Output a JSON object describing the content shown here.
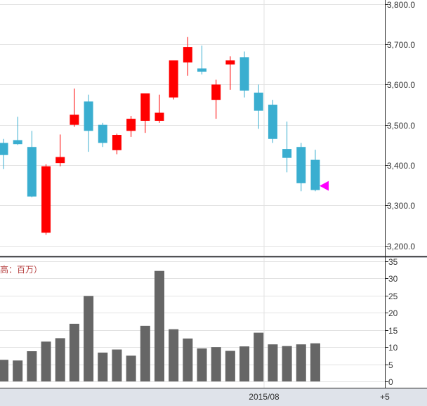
{
  "chart_data": [
    {
      "type": "candlestick",
      "ylim": [
        3175,
        3810
      ],
      "yticks": [
        "3,200.0",
        "3,300.0",
        "3,400.0",
        "3,500.0",
        "3,600.0",
        "3,700.0",
        "3,800.0"
      ],
      "ytick_values": [
        3200,
        3300,
        3400,
        3500,
        3600,
        3700,
        3800
      ],
      "colors": {
        "up": "#ff0000",
        "down": "#3aaed0",
        "marker": "#ff00ff"
      },
      "candles": [
        {
          "open": 3455,
          "high": 3465,
          "low": 3390,
          "close": 3425
        },
        {
          "open": 3462,
          "high": 3520,
          "low": 3450,
          "close": 3452
        },
        {
          "open": 3445,
          "high": 3485,
          "low": 3320,
          "close": 3322
        },
        {
          "open": 3232,
          "high": 3402,
          "low": 3227,
          "close": 3397
        },
        {
          "open": 3405,
          "high": 3476,
          "low": 3397,
          "close": 3420
        },
        {
          "open": 3500,
          "high": 3590,
          "low": 3495,
          "close": 3525
        },
        {
          "open": 3558,
          "high": 3575,
          "low": 3433,
          "close": 3485
        },
        {
          "open": 3500,
          "high": 3505,
          "low": 3445,
          "close": 3455
        },
        {
          "open": 3437,
          "high": 3478,
          "low": 3427,
          "close": 3475
        },
        {
          "open": 3485,
          "high": 3522,
          "low": 3470,
          "close": 3515
        },
        {
          "open": 3510,
          "high": 3578,
          "low": 3480,
          "close": 3578
        },
        {
          "open": 3510,
          "high": 3575,
          "low": 3505,
          "close": 3530
        },
        {
          "open": 3568,
          "high": 3660,
          "low": 3563,
          "close": 3660
        },
        {
          "open": 3655,
          "high": 3718,
          "low": 3622,
          "close": 3693
        },
        {
          "open": 3640,
          "high": 3697,
          "low": 3625,
          "close": 3632
        },
        {
          "open": 3562,
          "high": 3612,
          "low": 3515,
          "close": 3600
        },
        {
          "open": 3650,
          "high": 3670,
          "low": 3587,
          "close": 3660
        },
        {
          "open": 3668,
          "high": 3682,
          "low": 3568,
          "close": 3585
        },
        {
          "open": 3580,
          "high": 3600,
          "low": 3490,
          "close": 3535
        },
        {
          "open": 3550,
          "high": 3562,
          "low": 3455,
          "close": 3465
        },
        {
          "open": 3440,
          "high": 3508,
          "low": 3382,
          "close": 3418
        },
        {
          "open": 3445,
          "high": 3455,
          "low": 3335,
          "close": 3355
        },
        {
          "open": 3413,
          "high": 3438,
          "low": 3335,
          "close": 3338
        }
      ],
      "marker_value": 3338
    },
    {
      "type": "bar",
      "label": "高：百万）",
      "ylim": [
        0,
        35
      ],
      "yticks": [
        "0",
        "5",
        "10",
        "15",
        "20",
        "25",
        "30",
        "35"
      ],
      "ytick_values": [
        0,
        5,
        10,
        15,
        20,
        25,
        30,
        35
      ],
      "bar_color": "#666666",
      "values": [
        6.3,
        6.1,
        8.8,
        11.6,
        12.6,
        16.8,
        24.9,
        8.4,
        9.3,
        7.5,
        16.2,
        32.2,
        15.2,
        12.5,
        9.6,
        10.0,
        8.9,
        10.2,
        14.2,
        10.8,
        10.3,
        10.8,
        11.1
      ]
    }
  ],
  "xaxis": {
    "labels": [
      "2015/08",
      "+5"
    ]
  }
}
